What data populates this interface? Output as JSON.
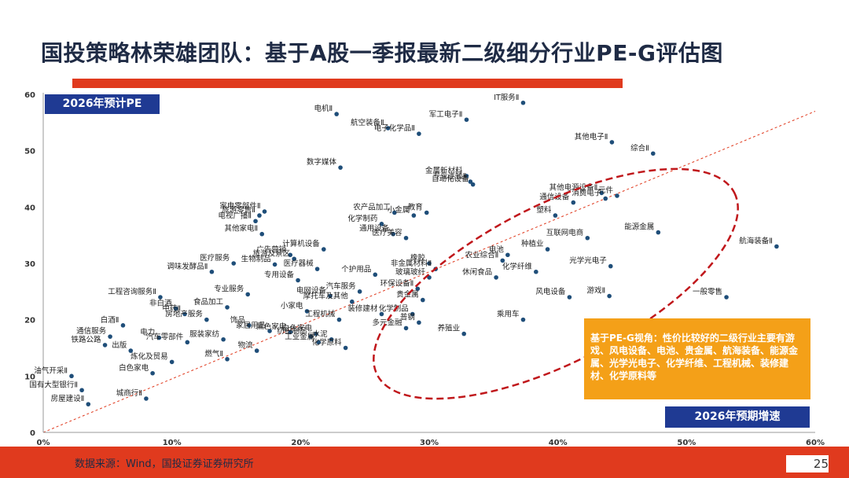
{
  "page": {
    "title": "国投策略林荣雄团队：基于A股一季报最新二级细分行业PE-G评估图",
    "source": "数据来源：Wind，国投证券证券研究所",
    "page_number": "25"
  },
  "labels": {
    "y_box": "2026年预计PE",
    "x_box": "2026年预期增速",
    "callout": "基于PE-G视角：性价比较好的二级行业主要有游戏、风电设备、电池、贵金属、航海装备、能源金属、光学光电子、化学纤维、工程机械、装修建材、化学原料等"
  },
  "colors": {
    "title": "#1f2b45",
    "accent_red": "#e03a1e",
    "box_blue": "#1f3a93",
    "point": "#1f4e79",
    "trend_line": "#e03a1e",
    "callout_bg": "#f4a018"
  },
  "chart_data": {
    "type": "scatter",
    "xlabel": "2026年预期增速",
    "ylabel": "2026年预计PE",
    "xlim": [
      0,
      0.6
    ],
    "ylim": [
      0,
      60
    ],
    "x_ticks": [
      "0%",
      "10%",
      "20%",
      "30%",
      "40%",
      "50%",
      "60%"
    ],
    "y_ticks": [
      "0",
      "10",
      "20",
      "30",
      "40",
      "50",
      "60"
    ],
    "grid": false,
    "trend_line": {
      "from": [
        0,
        0
      ],
      "to": [
        0.6,
        57
      ]
    },
    "highlight": "dashed red ellipse around low-PE high-growth industries",
    "points": [
      {
        "label": "电机Ⅱ",
        "x": 0.228,
        "y": 56.5
      },
      {
        "label": "航空装备Ⅱ",
        "x": 0.268,
        "y": 54.0
      },
      {
        "label": "电子化学品Ⅱ",
        "x": 0.292,
        "y": 53.0
      },
      {
        "label": "IT服务Ⅱ",
        "x": 0.373,
        "y": 58.5
      },
      {
        "label": "军工电子Ⅱ",
        "x": 0.329,
        "y": 55.5
      },
      {
        "label": "数字媒体",
        "x": 0.231,
        "y": 47.0
      },
      {
        "label": "其他电子Ⅱ",
        "x": 0.442,
        "y": 51.5
      },
      {
        "label": "综合Ⅱ",
        "x": 0.474,
        "y": 49.5
      },
      {
        "label": "金属新材料",
        "x": 0.329,
        "y": 45.5
      },
      {
        "label": "专业连锁Ⅱ",
        "x": 0.332,
        "y": 44.5
      },
      {
        "label": "自动化设备",
        "x": 0.334,
        "y": 44.0
      },
      {
        "label": "其他电源设备Ⅱ",
        "x": 0.434,
        "y": 42.5
      },
      {
        "label": "通信设备",
        "x": 0.412,
        "y": 40.8
      },
      {
        "label": "元件",
        "x": 0.446,
        "y": 42.0
      },
      {
        "label": "消费电子",
        "x": 0.437,
        "y": 41.5
      },
      {
        "label": "塑料",
        "x": 0.398,
        "y": 38.5
      },
      {
        "label": "家电零部件Ⅱ",
        "x": 0.172,
        "y": 39.2
      },
      {
        "label": "旅游零售Ⅱ",
        "x": 0.168,
        "y": 38.5
      },
      {
        "label": "电视广播Ⅱ",
        "x": 0.165,
        "y": 37.5
      },
      {
        "label": "其他家电Ⅱ",
        "x": 0.17,
        "y": 35.2
      },
      {
        "label": "化学制药",
        "x": 0.263,
        "y": 37.0
      },
      {
        "label": "农产品加工",
        "x": 0.273,
        "y": 39.0
      },
      {
        "label": "小金属",
        "x": 0.288,
        "y": 38.5
      },
      {
        "label": "通用设备",
        "x": 0.272,
        "y": 35.2
      },
      {
        "label": "教育",
        "x": 0.298,
        "y": 39.0
      },
      {
        "label": "医疗美容",
        "x": 0.282,
        "y": 34.5
      },
      {
        "label": "能源金属",
        "x": 0.478,
        "y": 35.5
      },
      {
        "label": "互联网电商",
        "x": 0.423,
        "y": 34.5
      },
      {
        "label": "航海装备Ⅱ",
        "x": 0.57,
        "y": 33.0
      },
      {
        "label": "广告营销",
        "x": 0.192,
        "y": 31.5
      },
      {
        "label": "计算机设备",
        "x": 0.218,
        "y": 32.5
      },
      {
        "label": "医疗服务",
        "x": 0.148,
        "y": 30.0
      },
      {
        "label": "旅游及景区",
        "x": 0.195,
        "y": 30.8
      },
      {
        "label": "调味发酵品Ⅱ",
        "x": 0.131,
        "y": 28.5
      },
      {
        "label": "生物制品",
        "x": 0.18,
        "y": 29.8
      },
      {
        "label": "医疗器械",
        "x": 0.213,
        "y": 29.0
      },
      {
        "label": "个护用品",
        "x": 0.258,
        "y": 28.0
      },
      {
        "label": "专用设备",
        "x": 0.198,
        "y": 27.0
      },
      {
        "label": "电池",
        "x": 0.361,
        "y": 31.5
      },
      {
        "label": "农业综合Ⅱ",
        "x": 0.357,
        "y": 30.5
      },
      {
        "label": "种植业",
        "x": 0.392,
        "y": 32.5
      },
      {
        "label": "化学纤维",
        "x": 0.383,
        "y": 28.5
      },
      {
        "label": "橡胶",
        "x": 0.3,
        "y": 30.0
      },
      {
        "label": "非金属材料Ⅱ",
        "x": 0.305,
        "y": 29.0
      },
      {
        "label": "玻璃玻纤",
        "x": 0.3,
        "y": 27.5
      },
      {
        "label": "休闲食品",
        "x": 0.352,
        "y": 27.5
      },
      {
        "label": "光学光电子",
        "x": 0.441,
        "y": 29.5
      },
      {
        "label": "工程咨询服务Ⅱ",
        "x": 0.091,
        "y": 24.0
      },
      {
        "label": "专业服务",
        "x": 0.159,
        "y": 24.5
      },
      {
        "label": "电网设备",
        "x": 0.223,
        "y": 24.2
      },
      {
        "label": "汽车服务",
        "x": 0.246,
        "y": 25.0
      },
      {
        "label": "摩托车及其他",
        "x": 0.24,
        "y": 23.2
      },
      {
        "label": "环保设备Ⅱ",
        "x": 0.291,
        "y": 25.5
      },
      {
        "label": "贵金属",
        "x": 0.295,
        "y": 23.5
      },
      {
        "label": "风电设备",
        "x": 0.409,
        "y": 24.0
      },
      {
        "label": "游戏Ⅱ",
        "x": 0.44,
        "y": 24.2
      },
      {
        "label": "一般零售",
        "x": 0.531,
        "y": 24.0
      },
      {
        "label": "非白酒",
        "x": 0.103,
        "y": 22.0
      },
      {
        "label": "中药Ⅱ",
        "x": 0.11,
        "y": 21.0
      },
      {
        "label": "食品加工",
        "x": 0.143,
        "y": 22.2
      },
      {
        "label": "房地产服务",
        "x": 0.127,
        "y": 20.0
      },
      {
        "label": "小家电",
        "x": 0.205,
        "y": 21.5
      },
      {
        "label": "装修建材",
        "x": 0.263,
        "y": 21.0
      },
      {
        "label": "化学制品",
        "x": 0.287,
        "y": 21.0
      },
      {
        "label": "工程机械",
        "x": 0.23,
        "y": 20.0
      },
      {
        "label": "普钢",
        "x": 0.292,
        "y": 19.5
      },
      {
        "label": "多元金融",
        "x": 0.282,
        "y": 18.5
      },
      {
        "label": "乘用车",
        "x": 0.373,
        "y": 20.0
      },
      {
        "label": "白酒Ⅱ",
        "x": 0.062,
        "y": 19.0
      },
      {
        "label": "饰品",
        "x": 0.16,
        "y": 19.0
      },
      {
        "label": "家居用品",
        "x": 0.176,
        "y": 18.0
      },
      {
        "label": "黑色家电",
        "x": 0.192,
        "y": 17.8
      },
      {
        "label": "白色家电",
        "x": 0.212,
        "y": 17.5
      },
      {
        "label": "纺织制品",
        "x": 0.208,
        "y": 17.0
      },
      {
        "label": "工业金属",
        "x": 0.214,
        "y": 16.0
      },
      {
        "label": "水泥",
        "x": 0.224,
        "y": 16.5
      },
      {
        "label": "化学原料",
        "x": 0.235,
        "y": 15.0
      },
      {
        "label": "养殖业",
        "x": 0.327,
        "y": 17.5
      },
      {
        "label": "通信服务",
        "x": 0.052,
        "y": 17.0
      },
      {
        "label": "电力",
        "x": 0.09,
        "y": 16.8
      },
      {
        "label": "汽车零部件",
        "x": 0.112,
        "y": 16.0
      },
      {
        "label": "服装家纺",
        "x": 0.14,
        "y": 16.5
      },
      {
        "label": "铁路公路",
        "x": 0.048,
        "y": 15.5
      },
      {
        "label": "出版",
        "x": 0.068,
        "y": 14.5
      },
      {
        "label": "燃气Ⅱ",
        "x": 0.143,
        "y": 13.0
      },
      {
        "label": "炼化及贸易",
        "x": 0.1,
        "y": 12.5
      },
      {
        "label": "物流",
        "x": 0.166,
        "y": 14.5
      },
      {
        "label": "油气开采Ⅱ",
        "x": 0.022,
        "y": 10.0
      },
      {
        "label": "白色家电",
        "x": 0.085,
        "y": 10.5
      },
      {
        "label": "国有大型银行Ⅱ",
        "x": 0.03,
        "y": 7.5
      },
      {
        "label": "城商行Ⅱ",
        "x": 0.08,
        "y": 6.0
      },
      {
        "label": "房屋建设Ⅱ",
        "x": 0.035,
        "y": 5.0
      }
    ]
  }
}
